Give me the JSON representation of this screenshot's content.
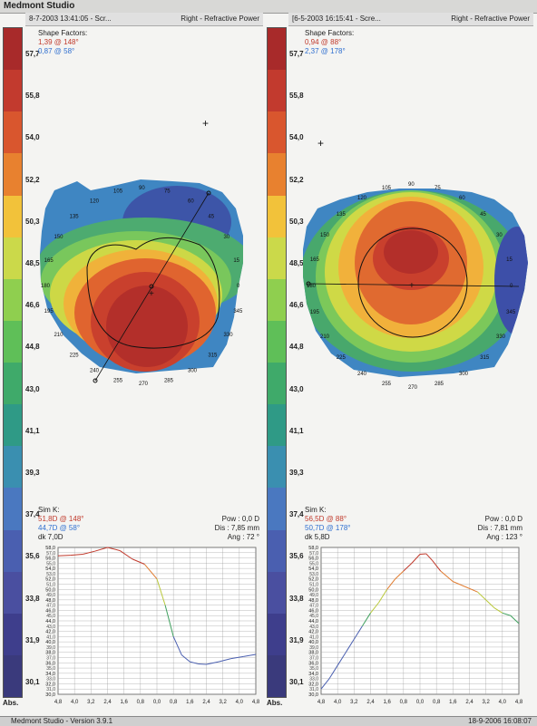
{
  "app": {
    "title": "Medmont Studio"
  },
  "left": {
    "header_left": "8-7-2003 13:41:05 - Scr...",
    "header_right": "Right - Refractive Power",
    "shape_title": "Shape Factors:",
    "shape_red": "1,39 @ 148°",
    "shape_blue": "0,87 @ 58°",
    "simk_title": "Sim K:",
    "simk_red": "51,8D @ 148°",
    "simk_blue": "44,7D @ 58°",
    "dk": "dk 7,0D",
    "pow": "Pow : 0,0 D",
    "dis": "Dis : 7,85 mm",
    "ang": "Ang : 72 °"
  },
  "right": {
    "header_left": "[6-5-2003 16:15:41 - Scre...",
    "header_right": "Right - Refractive Power",
    "shape_title": "Shape Factors:",
    "shape_red": "0,94 @ 88°",
    "shape_blue": "2,37 @ 178°",
    "simk_title": "Sim K:",
    "simk_red": "56,5D @ 88°",
    "simk_blue": "50,7D @ 178°",
    "dk": "dk 5,8D",
    "pow": "Pow : 0,0 D",
    "dis": "Dis : 7,81 mm",
    "ang": "Ang : 123 °"
  },
  "scale": {
    "labels": [
      "57,7",
      "55,8",
      "54,0",
      "52,2",
      "50,3",
      "48,5",
      "46,6",
      "44,8",
      "43,0",
      "41,1",
      "39,3",
      "37,4",
      "35,6",
      "33,8",
      "31,9",
      "30,1"
    ],
    "abs": "Abs.",
    "colors": [
      "#a82a2a",
      "#c23a2e",
      "#d9562e",
      "#e8812f",
      "#f2c23a",
      "#cbd94a",
      "#8fcf4f",
      "#5fbf58",
      "#3faa6a",
      "#2f9a86",
      "#3a8fb0",
      "#4a78c0",
      "#4a5fb0",
      "#4a4fa0",
      "#3e3e8c",
      "#3a3a7c"
    ]
  },
  "map_angles": [
    "105",
    "90",
    "75",
    "60",
    "45",
    "30",
    "15",
    "0",
    "345",
    "330",
    "315",
    "300",
    "285",
    "270",
    "255",
    "240",
    "225",
    "210",
    "195",
    "180",
    "165",
    "150",
    "135",
    "120"
  ],
  "profile": {
    "y_ticks": [
      "58,0",
      "56,0",
      "54,0",
      "52,0",
      "50,0",
      "48,0",
      "46,0",
      "44,0",
      "42,0",
      "40,0",
      "38,0",
      "36,0",
      "34,0",
      "32,0",
      "30,0"
    ],
    "y_ticks_minor": [
      "57,0",
      "55,0",
      "53,0",
      "51,0",
      "49,0",
      "47,0",
      "45,0",
      "43,0",
      "41,0",
      "39,0",
      "37,0",
      "35,0",
      "33,0",
      "31,0"
    ],
    "x_ticks": [
      "4,8",
      "4,0",
      "3,2",
      "2,4",
      "1,6",
      "0,8",
      "0,0",
      "0,8",
      "1,6",
      "2,4",
      "3,2",
      "4,0",
      "4,8"
    ],
    "left_curve": [
      [
        -4.8,
        56.4
      ],
      [
        -4.2,
        56.5
      ],
      [
        -3.6,
        56.7
      ],
      [
        -3.0,
        57.3
      ],
      [
        -2.4,
        58.0
      ],
      [
        -1.8,
        57.4
      ],
      [
        -1.2,
        55.8
      ],
      [
        -0.6,
        54.8
      ],
      [
        0.0,
        52.0
      ],
      [
        0.4,
        47.0
      ],
      [
        0.8,
        41.0
      ],
      [
        1.2,
        37.5
      ],
      [
        1.6,
        36.2
      ],
      [
        2.0,
        35.8
      ],
      [
        2.4,
        35.7
      ],
      [
        3.0,
        36.2
      ],
      [
        3.6,
        36.8
      ],
      [
        4.2,
        37.2
      ],
      [
        4.8,
        37.6
      ]
    ],
    "right_curve": [
      [
        -4.8,
        31.0
      ],
      [
        -4.4,
        33.0
      ],
      [
        -4.0,
        35.5
      ],
      [
        -3.6,
        38.0
      ],
      [
        -3.2,
        40.5
      ],
      [
        -2.8,
        43.0
      ],
      [
        -2.4,
        45.5
      ],
      [
        -2.0,
        47.5
      ],
      [
        -1.6,
        50.0
      ],
      [
        -1.2,
        52.0
      ],
      [
        -0.8,
        53.5
      ],
      [
        -0.4,
        55.0
      ],
      [
        0.0,
        56.7
      ],
      [
        0.3,
        56.8
      ],
      [
        0.6,
        55.5
      ],
      [
        1.0,
        53.5
      ],
      [
        1.6,
        51.5
      ],
      [
        2.2,
        50.5
      ],
      [
        2.8,
        49.5
      ],
      [
        3.2,
        48.0
      ],
      [
        3.6,
        46.5
      ],
      [
        4.0,
        45.5
      ],
      [
        4.4,
        45.0
      ],
      [
        4.8,
        43.5
      ]
    ]
  },
  "status": {
    "left": "Medmont Studio - Version 3.9.1",
    "right": "18-9-2006 16:08:07"
  }
}
